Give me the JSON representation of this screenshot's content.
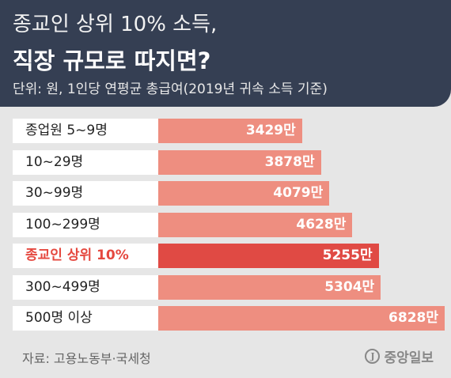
{
  "header": {
    "title_line1": "종교인 상위 10% 소득,",
    "title_line2": "직장 규모로 따지면?",
    "subtitle": "단위: 원, 1인당 연평균 총급여(2019년 귀속 소득 기준)"
  },
  "chart_data": {
    "type": "bar",
    "orientation": "horizontal",
    "categories": [
      "종업원 5~9명",
      "10~29명",
      "30~99명",
      "100~299명",
      "종교인 상위 10%",
      "300~499명",
      "500명 이상"
    ],
    "values": [
      3429,
      3878,
      4079,
      4628,
      5255,
      5304,
      6828
    ],
    "value_labels": [
      "3429만",
      "3878만",
      "4079만",
      "4628만",
      "5255만",
      "5304만",
      "6828만"
    ],
    "highlight_index": 4,
    "colors": {
      "bar": "#ee8e80",
      "highlight_bar": "#e04a44",
      "highlight_label": "#e5483f"
    }
  },
  "footer": {
    "source": "자료: 고용노동부·국세청",
    "brand_mark": "J",
    "brand": "중앙일보"
  },
  "colors": {
    "header_bg": "#353f53",
    "page_bg": "#e6e6e6"
  }
}
